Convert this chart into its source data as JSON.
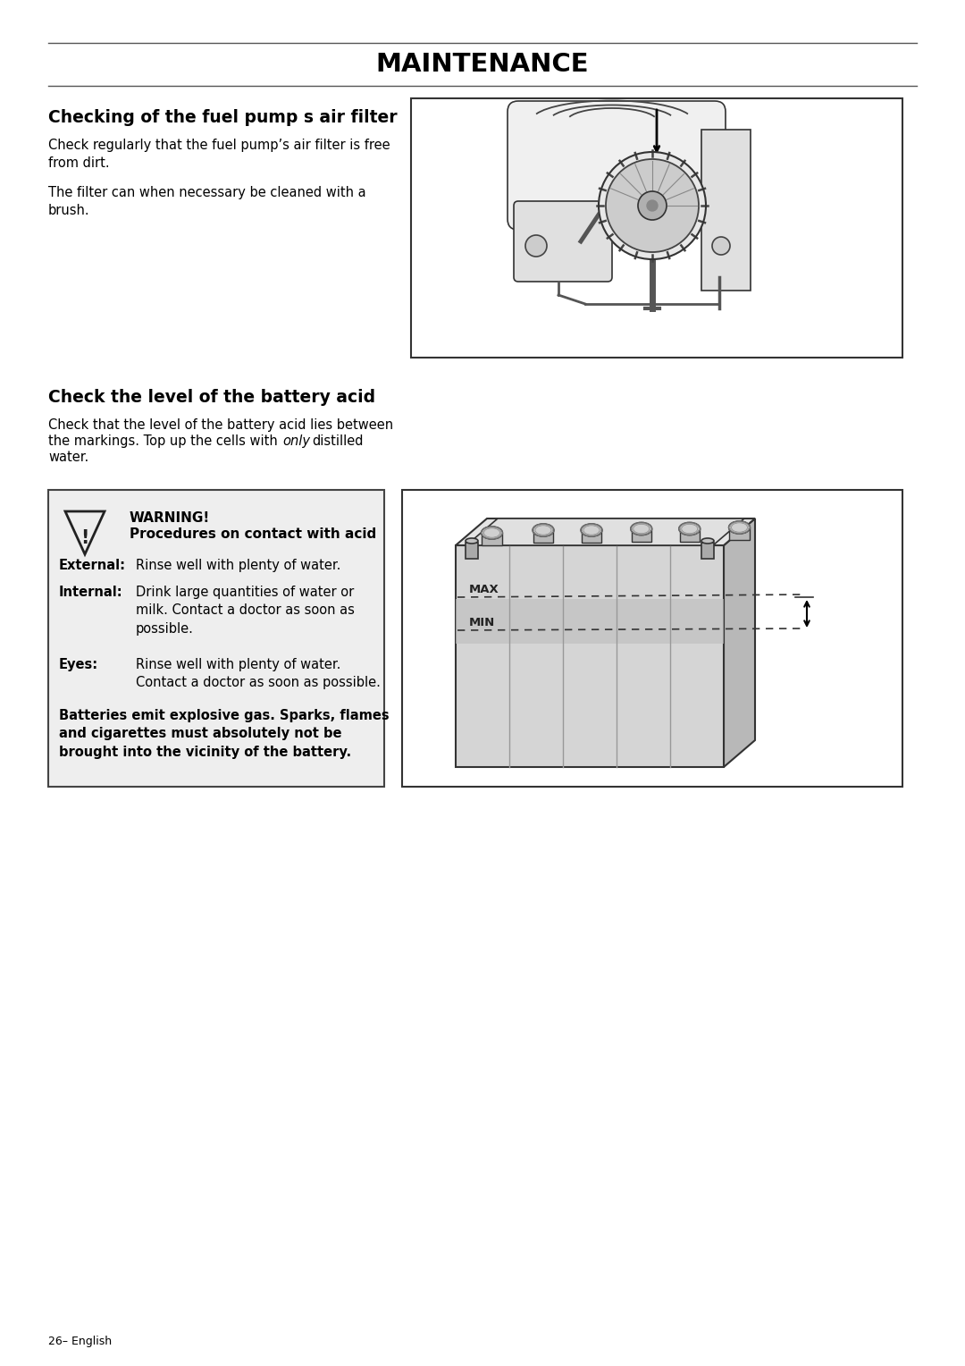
{
  "title": "MAINTENANCE",
  "page_number": "26– English",
  "section1_heading": "Checking of the fuel pump s air filter",
  "section1_para1": "Check regularly that the fuel pump’s air filter is free\nfrom dirt.",
  "section1_para2": "The filter can when necessary be cleaned with a\nbrush.",
  "section2_heading": "Check the level of the battery acid",
  "section2_para1a": "Check that the level of the battery acid lies between\nthe markings. Top up the cells with ",
  "section2_para1_italic": "only",
  "section2_para1b": " distilled\nwater.",
  "warning_heading": "WARNING!",
  "warning_subheading": "Procedures on contact with acid",
  "warning_external_label": "External:",
  "warning_external_text": "Rinse well with plenty of water.",
  "warning_internal_label": "Internal:",
  "warning_internal_text": "Drink large quantities of water or\nmilk. Contact a doctor as soon as\npossible.",
  "warning_eyes_label": "Eyes:",
  "warning_eyes_text": "Rinse well with plenty of water.\nContact a doctor as soon as possible.",
  "warning_footer": "Batteries emit explosive gas. Sparks, flames\nand cigarettes must absolutely not be\nbrought into the vicinity of the battery.",
  "bg_color": "#ffffff",
  "text_color": "#000000",
  "warn_bg": "#eeeeee",
  "warn_border": "#444444",
  "img_bg": "#f8f8f8",
  "img_border": "#333333"
}
